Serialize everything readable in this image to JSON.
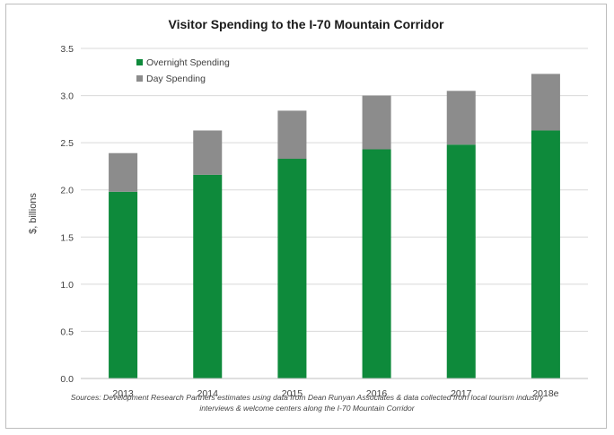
{
  "chart_data": {
    "type": "bar",
    "stacked": true,
    "title": "Visitor Spending to the I-70 Mountain Corridor",
    "xlabel": "",
    "ylabel": "$, billions",
    "ylim": [
      0,
      3.5
    ],
    "yticks": [
      "0.0",
      "0.5",
      "1.0",
      "1.5",
      "2.0",
      "2.5",
      "3.0",
      "3.5"
    ],
    "categories": [
      "2013",
      "2014",
      "2015",
      "2016",
      "2017",
      "2018e"
    ],
    "series": [
      {
        "name": "Overnight Spending",
        "color": "#0e8a3b",
        "values": [
          1.98,
          2.16,
          2.33,
          2.43,
          2.48,
          2.63
        ]
      },
      {
        "name": "Day Spending",
        "color": "#8c8c8c",
        "values": [
          0.41,
          0.47,
          0.51,
          0.57,
          0.57,
          0.6
        ]
      }
    ],
    "grid": true,
    "legend_position": "top-left"
  },
  "source_note": {
    "line1": "Sources: Development Research Partners estimates using data from Dean Runyan Associates & data collected from local tourism industry",
    "line2": "interviews & welcome centers along the I-70 Mountain Corridor"
  }
}
